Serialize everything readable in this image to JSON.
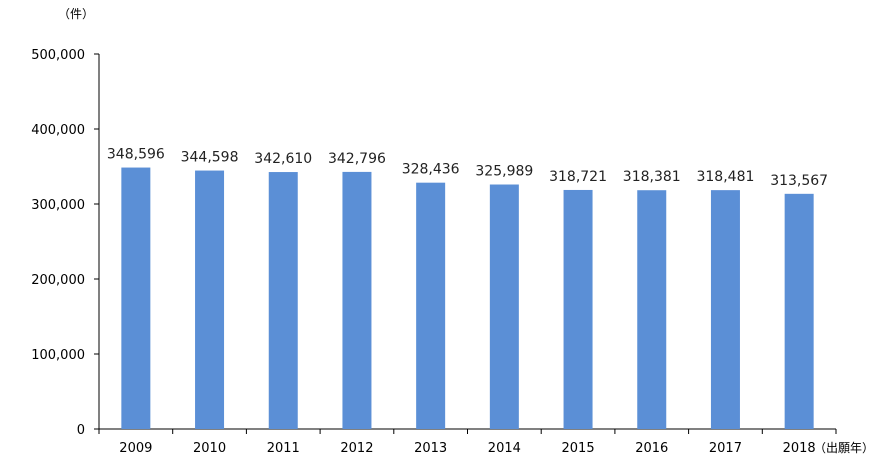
{
  "chart_data": {
    "type": "bar",
    "categories": [
      "2009",
      "2010",
      "2011",
      "2012",
      "2013",
      "2014",
      "2015",
      "2016",
      "2017",
      "2018"
    ],
    "values": [
      348596,
      344598,
      342610,
      342796,
      328436,
      325989,
      318721,
      318381,
      318481,
      313567
    ],
    "value_labels": [
      "348,596",
      "344,598",
      "342,610",
      "342,796",
      "328,436",
      "325,989",
      "318,721",
      "318,381",
      "318,481",
      "313,567"
    ],
    "y_unit": "（件）",
    "x_unit": "（出願年）",
    "ylim": [
      0,
      500000
    ],
    "yticks": [
      0,
      100000,
      200000,
      300000,
      400000,
      500000
    ],
    "ytick_labels": [
      "0",
      "100,000",
      "200,000",
      "300,000",
      "400,000",
      "500,000"
    ],
    "bar_color": "#5B8FD6",
    "grid": false,
    "legend": "none"
  }
}
